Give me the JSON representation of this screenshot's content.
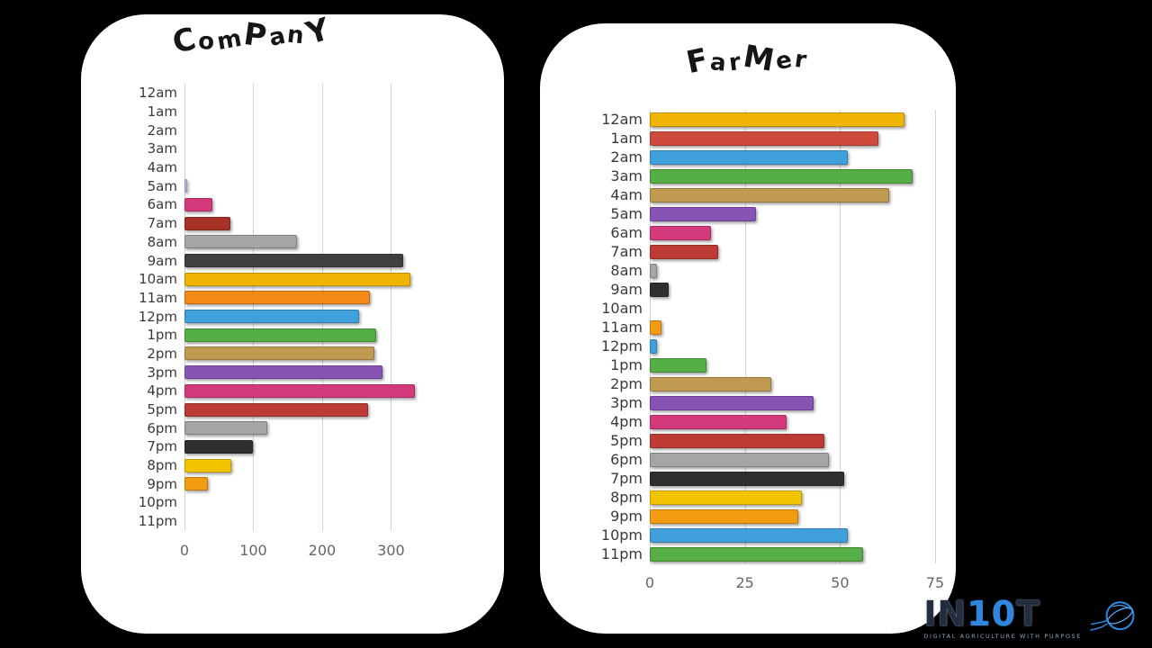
{
  "canvas": {
    "background": "#000000",
    "card_background": "#ffffff",
    "grid_color": "#d4d4d4"
  },
  "chart_data": [
    {
      "type": "bar",
      "orientation": "horizontal",
      "title": "ComPanY",
      "xlabel": "",
      "ylabel": "",
      "xlim": [
        0,
        340
      ],
      "xticks": [
        0,
        100,
        200,
        300
      ],
      "grid": true,
      "legend": false,
      "categories": [
        "12am",
        "1am",
        "2am",
        "3am",
        "4am",
        "5am",
        "6am",
        "7am",
        "8am",
        "9am",
        "10am",
        "11am",
        "12pm",
        "1pm",
        "2pm",
        "3pm",
        "4pm",
        "5pm",
        "6pm",
        "7pm",
        "8pm",
        "9pm",
        "10pm",
        "11pm"
      ],
      "values": [
        0,
        0,
        0,
        0,
        0,
        4,
        40,
        67,
        164,
        318,
        328,
        270,
        254,
        279,
        276,
        288,
        335,
        267,
        120,
        100,
        68,
        34,
        0,
        0
      ],
      "colors": [
        "",
        "",
        "",
        "",
        "",
        "#C9B6E4",
        "#D4397B",
        "#A93226",
        "#A5A5A5",
        "#3F3F3F",
        "#F0B405",
        "#F28A15",
        "#3FA0DB",
        "#56AE46",
        "#C09A51",
        "#8753B5",
        "#D4397B",
        "#BE3A34",
        "#A5A5A5",
        "#2F2F2F",
        "#F2C500",
        "#F29C11",
        "",
        ""
      ]
    },
    {
      "type": "bar",
      "orientation": "horizontal",
      "title": "FarMer",
      "xlabel": "",
      "ylabel": "",
      "xlim": [
        0,
        75
      ],
      "xticks": [
        0,
        25,
        50,
        75
      ],
      "grid": true,
      "legend": false,
      "categories": [
        "12am",
        "1am",
        "2am",
        "3am",
        "4am",
        "5am",
        "6am",
        "7am",
        "8am",
        "9am",
        "10am",
        "11am",
        "12pm",
        "1pm",
        "2pm",
        "3pm",
        "4pm",
        "5pm",
        "6pm",
        "7pm",
        "8pm",
        "9pm",
        "10pm",
        "11pm"
      ],
      "values": [
        67,
        60,
        52,
        69,
        63,
        28,
        16,
        18,
        2,
        5,
        0,
        3,
        2,
        15,
        32,
        43,
        36,
        46,
        47,
        51,
        40,
        39,
        52,
        56
      ],
      "colors": [
        "#F0B405",
        "#CE4A3C",
        "#3FA0DB",
        "#56AE46",
        "#C09A51",
        "#8753B5",
        "#D4397B",
        "#BE3A34",
        "#A5A5A5",
        "#2F2F2F",
        "",
        "#F29C11",
        "#3FA0DB",
        "#56AE46",
        "#C09A51",
        "#8753B5",
        "#D4397B",
        "#BE3A34",
        "#A5A5A5",
        "#2F2F2F",
        "#F2C500",
        "#F29C11",
        "#3FA0DB",
        "#56AE46"
      ]
    }
  ],
  "logo": {
    "brand_parts": [
      "IN",
      "10",
      "T"
    ],
    "tagline": "DIGITAL AGRICULTURE WITH PURPOSE",
    "brand_blue": "#2e86de"
  }
}
